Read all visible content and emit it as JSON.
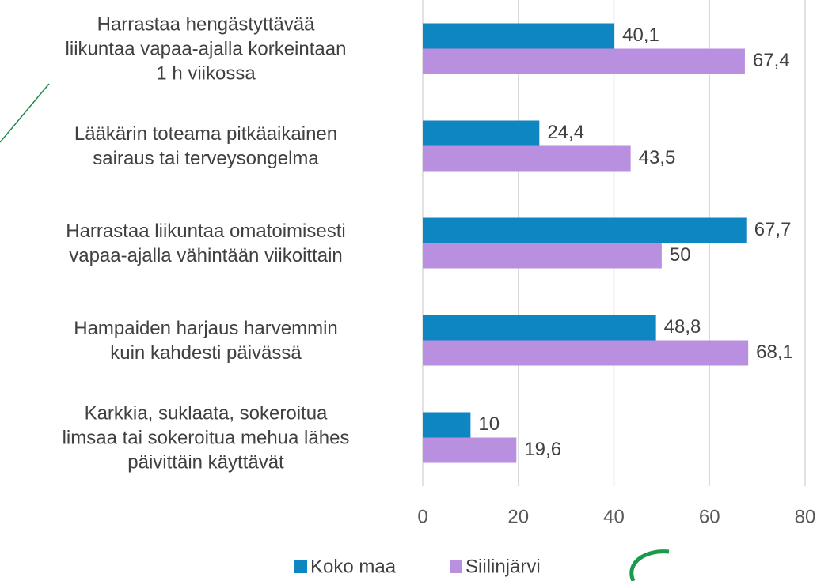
{
  "chart_data": {
    "type": "barh",
    "categories": [
      "Harrastaa hengästyttävää\nliikuntaa vapaa-ajalla korkeintaan\n1 h viikossa",
      "Lääkärin toteama pitkäaikainen\nsairaus tai terveysongelma",
      "Harrastaa liikuntaa omatoimisesti\nvapaa-ajalla vähintään viikoittain",
      "Hampaiden harjaus harvemmin\nkuin kahdesti päivässä",
      "Karkkia, suklaata, sokeroitua\nlimsaa tai sokeroitua mehua lähes\npäivittäin käyttävät"
    ],
    "series": [
      {
        "name": "Koko maa",
        "color": "#0e86c1",
        "values": [
          40.1,
          24.4,
          67.7,
          48.8,
          10
        ],
        "value_labels": [
          "40,1",
          "24,4",
          "67,7",
          "48,8",
          "10"
        ]
      },
      {
        "name": "Siilinjärvi",
        "color": "#b98fe0",
        "values": [
          67.4,
          43.5,
          50,
          68.1,
          19.6
        ],
        "value_labels": [
          "67,4",
          "43,5",
          "50",
          "68,1",
          "19,6"
        ]
      }
    ],
    "xlim": [
      0,
      80
    ],
    "xticks": [
      0,
      20,
      40,
      60,
      80
    ],
    "grid": true,
    "legend": "bottom"
  }
}
